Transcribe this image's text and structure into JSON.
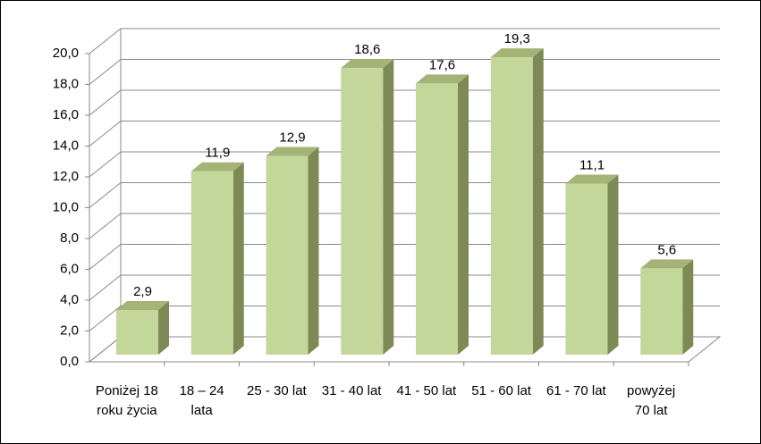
{
  "chart_data": {
    "type": "bar3d",
    "categories": [
      "Poniżej 18\nroku życia",
      "18 – 24\nlata",
      "25 - 30 lat",
      "31 - 40 lat",
      "41 - 50 lat",
      "51 - 60 lat",
      "61 - 70 lat",
      "powyżej\n70 lat"
    ],
    "values": [
      2.9,
      11.9,
      12.9,
      18.6,
      17.6,
      19.3,
      11.1,
      5.6
    ],
    "value_labels": [
      "2,9",
      "11,9",
      "12,9",
      "18,6",
      "17,6",
      "19,3",
      "11,1",
      "5,6"
    ],
    "color": "#c4d79b",
    "ylim": [
      0,
      20
    ],
    "yticks": [
      {
        "value": 0,
        "label": "0,0"
      },
      {
        "value": 2,
        "label": "2,0"
      },
      {
        "value": 4,
        "label": "4,0"
      },
      {
        "value": 6,
        "label": "6,0"
      },
      {
        "value": 8,
        "label": "8,0"
      },
      {
        "value": 10,
        "label": "10,0"
      },
      {
        "value": 12,
        "label": "12,0"
      },
      {
        "value": 14,
        "label": "14,0"
      },
      {
        "value": 16,
        "label": "16,0"
      },
      {
        "value": 18,
        "label": "18,0"
      },
      {
        "value": 20,
        "label": "20,0"
      }
    ],
    "grid": true
  }
}
